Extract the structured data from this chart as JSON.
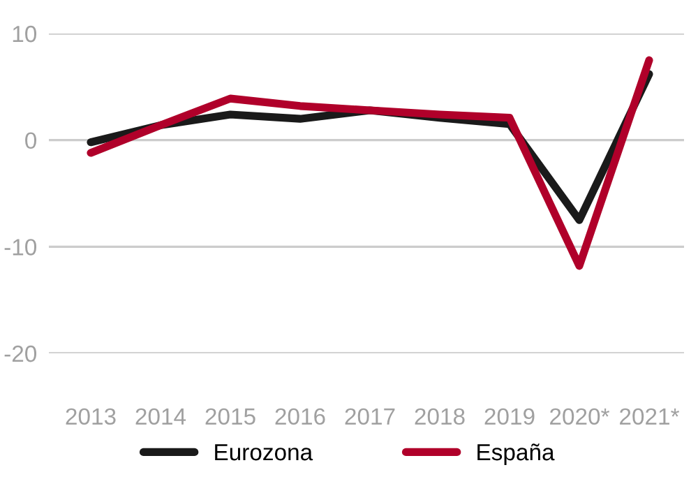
{
  "chart_data": {
    "type": "line",
    "categories": [
      "2013",
      "2014",
      "2015",
      "2016",
      "2017",
      "2018",
      "2019",
      "2020*",
      "2021*"
    ],
    "series": [
      {
        "name": "Eurozona",
        "color": "#1a1a1a",
        "values": [
          -0.2,
          1.4,
          2.4,
          2.0,
          2.8,
          2.1,
          1.5,
          -7.5,
          6.2
        ]
      },
      {
        "name": "España",
        "color": "#b0002a",
        "values": [
          -1.2,
          1.4,
          3.9,
          3.2,
          2.8,
          2.4,
          2.1,
          -11.8,
          7.5
        ]
      }
    ],
    "ylim": [
      -20,
      10
    ],
    "yticks": [
      -20,
      -10,
      0,
      10
    ],
    "grid": "y",
    "legend": "bottom",
    "marker": "none",
    "line_style": "solid"
  }
}
